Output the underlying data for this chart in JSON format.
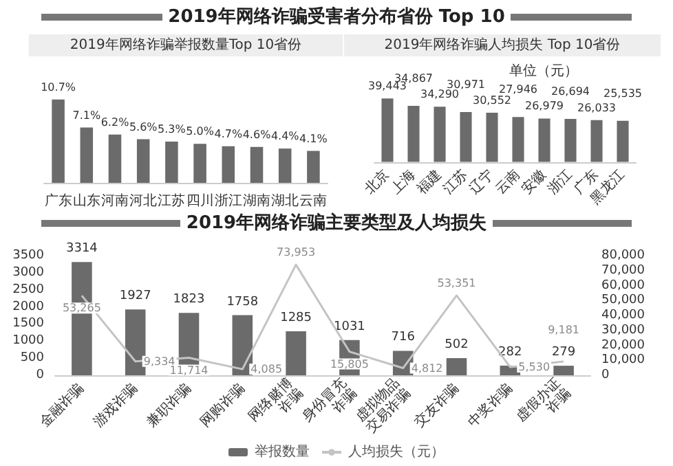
{
  "chart_data": [
    {
      "type": "bar",
      "title": "2019年网络诈骗举报数量Top 10省份",
      "annotations": [
        "2019年网络诈骗受害者分布省份 Top 10"
      ],
      "categories": [
        "广东",
        "山东",
        "河南",
        "河北",
        "江苏",
        "四川",
        "浙江",
        "湖南",
        "湖北",
        "云南"
      ],
      "series": [
        {
          "color": "#6b6b6b",
          "values": [
            10.7,
            7.1,
            6.2,
            5.6,
            5.3,
            5.0,
            4.7,
            4.6,
            4.4,
            4.1
          ],
          "value_labels": [
            "10.7%",
            "7.1%",
            "6.2%",
            "5.6%",
            "5.3%",
            "5.0%",
            "4.7%",
            "4.6%",
            "4.4%",
            "4.1%"
          ]
        }
      ]
    },
    {
      "type": "bar",
      "title": "2019年网络诈骗人均损失 Top 10省份",
      "ylabel": "单位（元）",
      "categories": [
        "北京",
        "上海",
        "福建",
        "江苏",
        "辽宁",
        "云南",
        "安徽",
        "浙江",
        "广东",
        "黑龙江"
      ],
      "series": [
        {
          "color": "#6b6b6b",
          "values": [
            39443,
            34867,
            34290,
            30971,
            30552,
            27946,
            26979,
            26694,
            26033,
            25535
          ],
          "value_labels": [
            "39,443",
            "34,867",
            "34,290",
            "30,971",
            "30,552",
            "27,946",
            "26,979",
            "26,694",
            "26,033",
            "25,535"
          ]
        }
      ]
    },
    {
      "type": "bar",
      "title": "2019年网络诈骗主要类型及人均损失",
      "categories": [
        "金融诈骗",
        "游戏诈骗",
        "兼职诈骗",
        "网购诈骗",
        "网络赌博诈骗",
        "身份冒充诈骗",
        "虚拟物品交易诈骗",
        "交友诈骗",
        "中奖诈骗",
        "虚假办证诈骗"
      ],
      "ylim": [
        0,
        3500
      ],
      "yticks": [
        0,
        500,
        1000,
        1500,
        2000,
        2500,
        3000,
        3500
      ],
      "y2lim": [
        0,
        80000
      ],
      "y2ticks": [
        0,
        {
          "value": 10000,
          "label": "10,000"
        },
        {
          "value": 20000,
          "label": "20,000"
        },
        {
          "value": 30000,
          "label": "30,000"
        },
        {
          "value": 40000,
          "label": "40,000"
        },
        {
          "value": 50000,
          "label": "50,000"
        },
        {
          "value": 60000,
          "label": "60,000"
        },
        {
          "value": 70000,
          "label": "70,000"
        },
        {
          "value": 80000,
          "label": "80,000"
        }
      ],
      "legend": "bottom",
      "marker": "none",
      "line_style": "solid",
      "series": [
        {
          "name": "举报数量",
          "color": "#6b6b6b",
          "values": [
            3314,
            1927,
            1823,
            1758,
            1285,
            1031,
            716,
            502,
            282,
            279
          ],
          "data_labels": true
        },
        {
          "name": "人均损失（元）",
          "type": "line",
          "axis": "y2",
          "color": "#c4c4c4",
          "values": [
            53265,
            9334,
            11714,
            4085,
            73953,
            15805,
            4812,
            53351,
            5530,
            9181
          ],
          "value_labels": [
            "53,265",
            "9,334",
            "11,714",
            "4,085",
            "73,953",
            "15,805",
            "4,812",
            "53,351",
            "5,530",
            "9,181"
          ]
        }
      ]
    }
  ]
}
